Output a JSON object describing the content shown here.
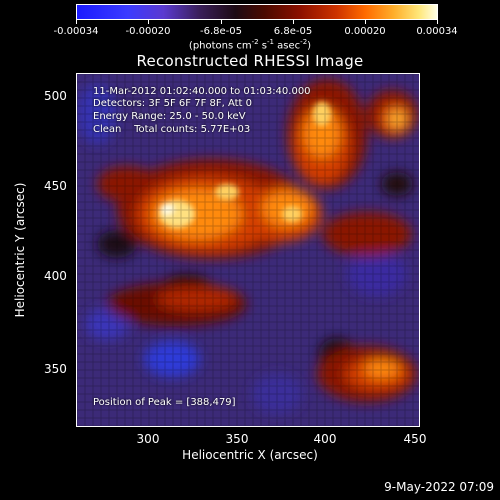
{
  "colorbar": {
    "ticks": [
      "-0.00034",
      "-0.00020",
      "-6.8e-05",
      "6.8e-05",
      "0.00020",
      "0.00034"
    ],
    "units_prefix": "(photons cm",
    "units_exp1": "-2",
    "units_mid": " s",
    "units_exp2": "-1",
    "units_asec": " asec",
    "units_exp3": "-2",
    "units_suffix": ")"
  },
  "title": "Reconstructed RHESSI Image",
  "overlay": {
    "line1": "11-Mar-2012 01:02:40.000 to 01:03:40.000",
    "line2": "Detectors: 3F 5F 6F 7F 8F, Att 0",
    "line3": "Energy Range: 25.0 - 50.0 keV",
    "line4": "Clean    Total counts: 5.77E+03",
    "peak": "Position of Peak = [388,479]"
  },
  "axes": {
    "xlabel": "Heliocentric X (arcsec)",
    "ylabel": "Heliocentric Y (arcsec)",
    "xticks": [
      "300",
      "350",
      "400",
      "450"
    ],
    "yticks": [
      "500",
      "450",
      "400",
      "350"
    ]
  },
  "timestamp": "9-May-2022 07:09"
}
